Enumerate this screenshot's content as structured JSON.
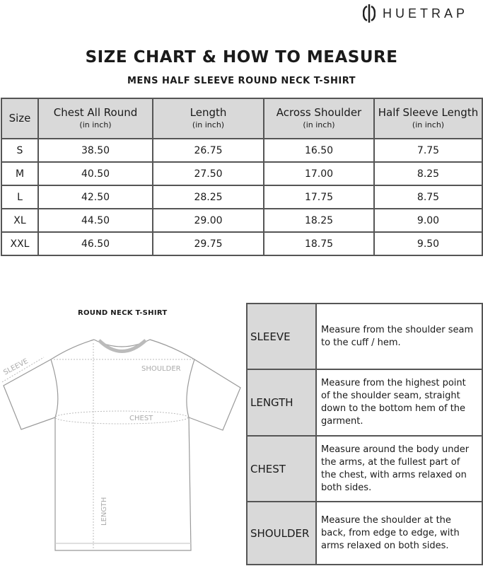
{
  "brand": {
    "name": "HUETRAP",
    "icon": "huetrap-logo-icon"
  },
  "title": "SIZE CHART & HOW TO MEASURE",
  "subtitle": "MENS HALF SLEEVE ROUND NECK T-SHIRT",
  "size_table": {
    "headers": [
      {
        "label": "Size",
        "unit": ""
      },
      {
        "label": "Chest All Round",
        "unit": "(in inch)"
      },
      {
        "label": "Length",
        "unit": "(in inch)"
      },
      {
        "label": "Across Shoulder",
        "unit": "(in inch)"
      },
      {
        "label": "Half Sleeve Length",
        "unit": "(in inch)"
      }
    ],
    "rows": [
      [
        "S",
        "38.50",
        "26.75",
        "16.50",
        "7.75"
      ],
      [
        "M",
        "40.50",
        "27.50",
        "17.00",
        "8.25"
      ],
      [
        "L",
        "42.50",
        "28.25",
        "17.75",
        "8.75"
      ],
      [
        "XL",
        "44.50",
        "29.00",
        "18.25",
        "9.00"
      ],
      [
        "XXL",
        "46.50",
        "29.75",
        "18.75",
        "9.50"
      ]
    ]
  },
  "diagram": {
    "title": "ROUND NECK T-SHIRT",
    "labels": {
      "sleeve": "SLEEVE",
      "shoulder": "SHOULDER",
      "chest": "CHEST",
      "length": "LENGTH"
    }
  },
  "how_to_measure": [
    {
      "name": "SLEEVE",
      "text": "Measure from the shoulder seam to the cuff / hem."
    },
    {
      "name": "LENGTH",
      "text": "Measure from the highest point of the shoulder seam, straight down to the bottom hem of the garment."
    },
    {
      "name": "CHEST",
      "text": "Measure around the body under the arms, at the fullest part of the chest, with arms relaxed on both sides."
    },
    {
      "name": "SHOULDER",
      "text": "Measure the shoulder at the back, from edge to edge, with arms relaxed on both sides."
    }
  ]
}
